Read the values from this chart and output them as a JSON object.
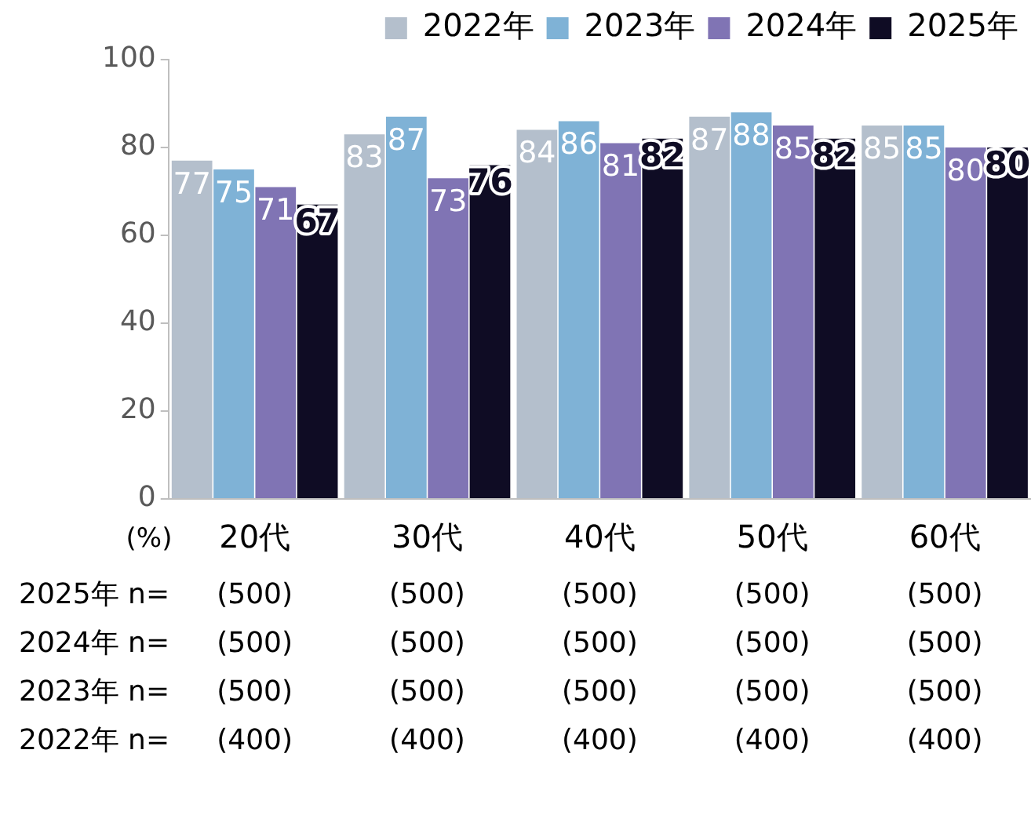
{
  "chart_data": {
    "type": "bar",
    "categories": [
      "20代",
      "30代",
      "40代",
      "50代",
      "60代"
    ],
    "series": [
      {
        "name": "2022年",
        "color": "#b4bfcc",
        "values": [
          77,
          83,
          84,
          87,
          85
        ]
      },
      {
        "name": "2023年",
        "color": "#7fb2d6",
        "values": [
          75,
          87,
          86,
          88,
          85
        ]
      },
      {
        "name": "2024年",
        "color": "#8074b4",
        "values": [
          71,
          73,
          81,
          85,
          80
        ]
      },
      {
        "name": "2025年",
        "color": "#0f0c24",
        "values": [
          67,
          76,
          82,
          82,
          80
        ]
      }
    ],
    "ylabel": "(%)",
    "ylim": [
      0,
      100
    ],
    "yticks": [
      0,
      20,
      40,
      60,
      80,
      100
    ],
    "grid": false,
    "legend": "top right",
    "data_labels": true,
    "annotations": [
      "2025年 n=",
      "(500)",
      "(500)",
      "(500)",
      "(500)",
      "(500)",
      "2024年 n=",
      "(500)",
      "(500)",
      "(500)",
      "(500)",
      "(500)",
      "2023年 n=",
      "(500)",
      "(500)",
      "(500)",
      "(500)",
      "(500)",
      "2022年 n=",
      "(400)",
      "(400)",
      "(400)",
      "(400)",
      "(400)"
    ]
  }
}
